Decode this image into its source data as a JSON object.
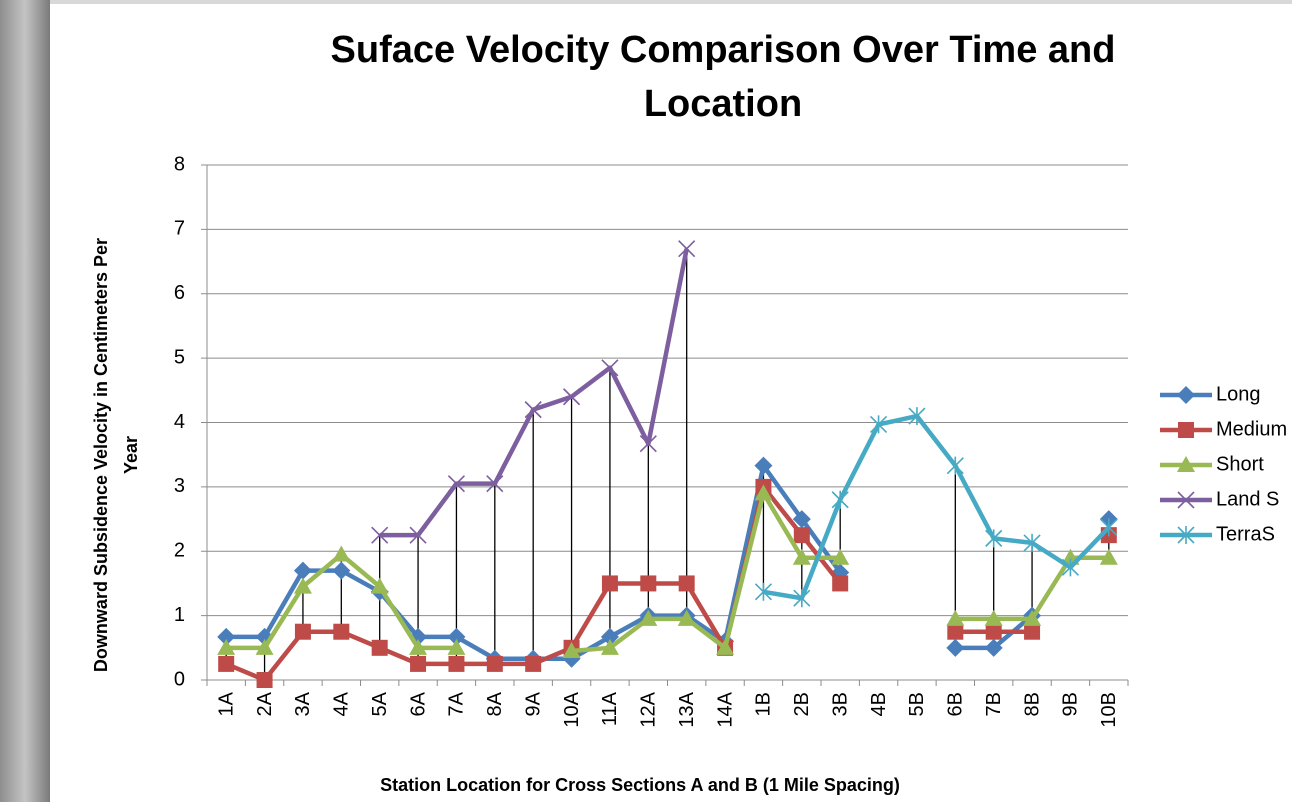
{
  "chart_data": {
    "type": "line",
    "title": [
      "Suface Velocity Comparison Over Time and",
      "Location"
    ],
    "x_label": "Station Location for Cross Sections A and B (1 Mile Spacing)",
    "y_label": [
      "Downward Subsidence Velocity in Centimeters Per",
      "Year"
    ],
    "categories": [
      "1A",
      "2A",
      "3A",
      "4A",
      "5A",
      "6A",
      "7A",
      "8A",
      "9A",
      "10A",
      "11A",
      "12A",
      "13A",
      "14A",
      "1B",
      "2B",
      "3B",
      "4B",
      "5B",
      "6B",
      "7B",
      "8B",
      "9B",
      "10B"
    ],
    "series": [
      {
        "name": "Long",
        "color": "#4a7ebb",
        "marker": "diamond",
        "values": [
          0.67,
          0.67,
          1.7,
          1.7,
          1.37,
          0.67,
          0.67,
          0.33,
          0.33,
          0.33,
          0.67,
          1.0,
          1.0,
          0.6,
          3.33,
          2.5,
          1.67,
          null,
          null,
          0.5,
          0.5,
          1.0,
          null,
          2.5
        ]
      },
      {
        "name": "Medium",
        "color": "#be4b48",
        "marker": "square",
        "values": [
          0.25,
          0,
          0.75,
          0.75,
          0.5,
          0.25,
          0.25,
          0.25,
          0.25,
          0.5,
          1.5,
          1.5,
          1.5,
          0.5,
          3.0,
          2.25,
          1.5,
          null,
          null,
          0.75,
          0.75,
          0.75,
          null,
          2.25
        ]
      },
      {
        "name": "Short",
        "color": "#98b954",
        "marker": "triangle",
        "values": [
          0.5,
          0.5,
          1.45,
          1.95,
          1.45,
          0.5,
          0.5,
          null,
          null,
          0.45,
          0.5,
          0.95,
          0.95,
          0.5,
          2.9,
          1.9,
          1.9,
          null,
          null,
          0.95,
          0.95,
          0.95,
          1.9,
          1.9
        ]
      },
      {
        "name": "Land S",
        "color": "#7d5fa0",
        "marker": "x",
        "values": [
          null,
          null,
          null,
          null,
          2.25,
          2.25,
          3.05,
          3.05,
          4.2,
          4.4,
          4.85,
          3.67,
          6.7,
          null,
          null,
          null,
          null,
          null,
          null,
          null,
          null,
          null,
          null,
          null
        ]
      },
      {
        "name": "TerraS",
        "color": "#46aac5",
        "marker": "star",
        "values": [
          null,
          null,
          null,
          null,
          null,
          null,
          null,
          null,
          null,
          null,
          null,
          null,
          null,
          null,
          1.37,
          1.27,
          2.8,
          3.97,
          4.1,
          3.33,
          2.2,
          2.13,
          1.75,
          2.37
        ]
      }
    ],
    "ylim": [
      0,
      8
    ],
    "yticks": [
      0,
      1,
      2,
      3,
      4,
      5,
      6,
      7,
      8
    ],
    "grid": true,
    "high_low_lines": true,
    "legend": "right"
  }
}
